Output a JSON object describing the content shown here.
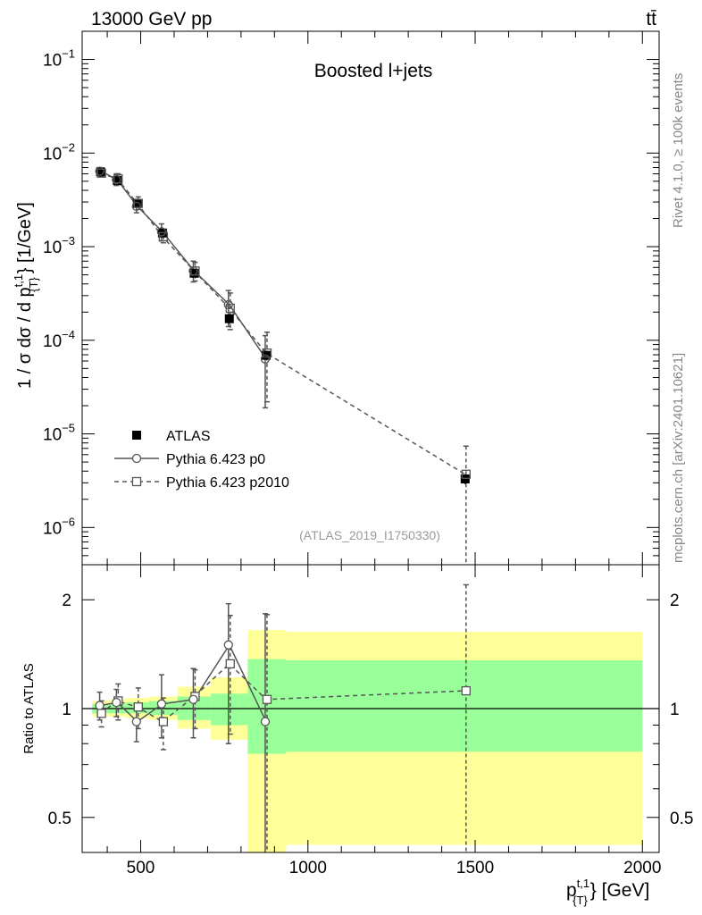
{
  "header": {
    "energy": "13000 GeV pp",
    "process": "tt̄"
  },
  "side_text": {
    "rivet": "Rivet 4.1.0, ≥ 100k events",
    "mcplots": "mcplots.cern.ch [arXiv:2401.10621]"
  },
  "colors": {
    "data": "#000000",
    "mc": "#555555",
    "band_inner": "#99ff99",
    "band_outer": "#ffff99"
  },
  "chart_data": [
    {
      "type": "scatter",
      "panel": "main",
      "title": "Boosted l+jets",
      "analysis_label": "(ATLAS_2019_I1750330)",
      "ylabel": "1 / σ dσ / d p_{T}^{t,1} [1/GeV]",
      "xlabel": "",
      "yscale": "log",
      "xlim": [
        325,
        2050
      ],
      "ylim": [
        4e-07,
        0.2
      ],
      "yticks": [
        {
          "value": 1e-06,
          "base": "10",
          "exp": "−6"
        },
        {
          "value": 1e-05,
          "base": "10",
          "exp": "−5"
        },
        {
          "value": 0.0001,
          "base": "10",
          "exp": "−4"
        },
        {
          "value": 0.001,
          "base": "10",
          "exp": "−3"
        },
        {
          "value": 0.01,
          "base": "10",
          "exp": "−2"
        },
        {
          "value": 0.1,
          "base": "10",
          "exp": "−1"
        }
      ],
      "legend": [
        "ATLAS",
        "Pythia 6.423 p0",
        "Pythia 6.423 p2010"
      ],
      "series": [
        {
          "name": "ATLAS",
          "x": [
            380,
            430,
            490,
            565,
            660,
            765,
            875,
            1470
          ],
          "y": [
            0.0063,
            0.0051,
            0.0029,
            0.0014,
            0.00052,
            0.00017,
            6.9e-05,
            3.3e-06
          ],
          "err": [
            0.0003,
            0.0003,
            0.0002,
            0.0001,
            5e-05,
            2e-05,
            7e-06,
            4e-07
          ]
        },
        {
          "name": "Pythia 6.423 p0",
          "x": [
            380,
            430,
            490,
            565,
            660,
            765,
            875
          ],
          "y": [
            0.0064,
            0.0052,
            0.0027,
            0.00144,
            0.00055,
            0.00024,
            6.3e-05
          ],
          "ylow": [
            0.0058,
            0.0045,
            0.0023,
            0.00115,
            0.00042,
            0.00014,
            1.9e-05
          ],
          "yhigh": [
            0.007,
            0.006,
            0.0032,
            0.00175,
            0.0007,
            0.00034,
            0.000112
          ]
        },
        {
          "name": "Pythia 6.423 p2010",
          "x": [
            380,
            430,
            490,
            565,
            660,
            765,
            875,
            1470
          ],
          "y": [
            0.0061,
            0.0053,
            0.0029,
            0.00128,
            0.00055,
            0.00022,
            7.3e-05,
            3.7e-06
          ],
          "ylow": [
            0.0056,
            0.0046,
            0.0025,
            0.0011,
            0.00043,
            0.00013,
            2.2e-05,
            1e-07
          ],
          "yhigh": [
            0.0066,
            0.006,
            0.0034,
            0.00152,
            0.00068,
            0.00032,
            0.000122,
            7.4e-06
          ]
        }
      ]
    },
    {
      "type": "scatter",
      "panel": "ratio",
      "ylabel": "Ratio to ATLAS",
      "xlabel": "p_{T}^{t,1} [GeV]",
      "yscale": "log",
      "xlim": [
        325,
        2050
      ],
      "ylim": [
        0.4,
        2.5
      ],
      "yticks": [
        0.5,
        1,
        2
      ],
      "yticklabels": [
        "0.5",
        "1",
        "2"
      ],
      "xticks": [
        500,
        1000,
        1500,
        2000
      ],
      "xticklabels": [
        "500",
        "1000",
        "1500",
        "2000"
      ],
      "bins": [
        {
          "lo": 355,
          "hi": 405,
          "inner": [
            0.97,
            1.03
          ],
          "outer": [
            0.95,
            1.05
          ]
        },
        {
          "lo": 405,
          "hi": 455,
          "inner": [
            0.97,
            1.03
          ],
          "outer": [
            0.95,
            1.06
          ]
        },
        {
          "lo": 455,
          "hi": 525,
          "inner": [
            0.97,
            1.04
          ],
          "outer": [
            0.94,
            1.07
          ]
        },
        {
          "lo": 525,
          "hi": 610,
          "inner": [
            0.96,
            1.05
          ],
          "outer": [
            0.93,
            1.08
          ]
        },
        {
          "lo": 610,
          "hi": 710,
          "inner": [
            0.93,
            1.08
          ],
          "outer": [
            0.88,
            1.15
          ]
        },
        {
          "lo": 710,
          "hi": 820,
          "inner": [
            0.9,
            1.1
          ],
          "outer": [
            0.82,
            1.22
          ]
        },
        {
          "lo": 820,
          "hi": 935,
          "inner": [
            0.75,
            1.37
          ],
          "outer": [
            0.37,
            1.65
          ]
        },
        {
          "lo": 935,
          "hi": 2000,
          "inner": [
            0.76,
            1.36
          ],
          "outer": [
            0.42,
            1.63
          ]
        }
      ],
      "series": [
        {
          "name": "Pythia 6.423 p0",
          "x": [
            380,
            430,
            490,
            565,
            660,
            765,
            875
          ],
          "y": [
            1.02,
            1.04,
            0.92,
            1.03,
            1.06,
            1.5,
            0.92
          ],
          "ylow": [
            0.93,
            0.95,
            0.81,
            0.83,
            0.83,
            0.8,
            0.3
          ],
          "yhigh": [
            1.11,
            1.13,
            1.03,
            1.24,
            1.29,
            1.95,
            1.83
          ]
        },
        {
          "name": "Pythia 6.423 p2010",
          "x": [
            380,
            430,
            490,
            565,
            660,
            765,
            875,
            1470
          ],
          "y": [
            0.97,
            1.05,
            1.01,
            0.92,
            1.08,
            1.33,
            1.06,
            1.12
          ],
          "ylow": [
            0.89,
            0.93,
            0.88,
            0.77,
            0.88,
            0.85,
            0.3,
            0.3
          ],
          "yhigh": [
            1.05,
            1.17,
            1.14,
            1.07,
            1.28,
            1.81,
            1.82,
            2.2
          ]
        }
      ]
    }
  ]
}
